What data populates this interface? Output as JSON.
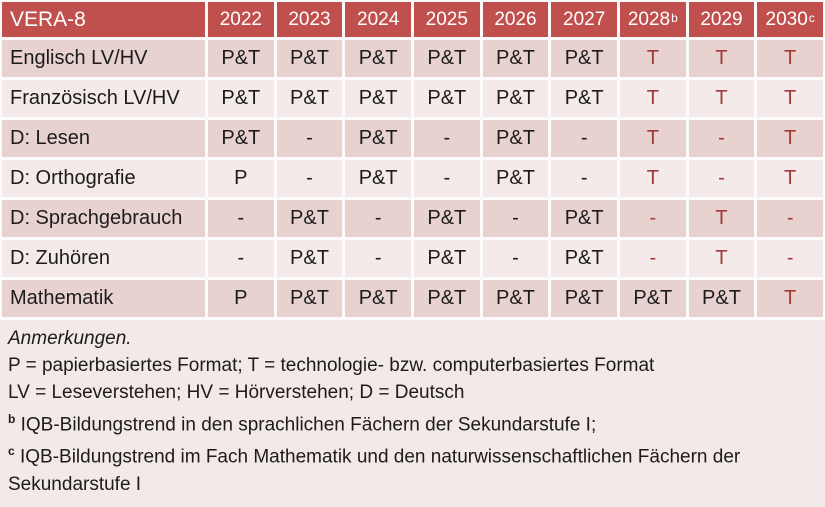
{
  "table": {
    "title": "VERA-8",
    "year_headers": [
      {
        "label": "2022",
        "sup": ""
      },
      {
        "label": "2023",
        "sup": ""
      },
      {
        "label": "2024",
        "sup": ""
      },
      {
        "label": "2025",
        "sup": ""
      },
      {
        "label": "2026",
        "sup": ""
      },
      {
        "label": "2027",
        "sup": ""
      },
      {
        "label": "2028",
        "sup": "b"
      },
      {
        "label": "2029",
        "sup": ""
      },
      {
        "label": "2030",
        "sup": "c"
      }
    ],
    "rows": [
      {
        "label": "Englisch LV/HV",
        "cells": [
          {
            "v": "P&T",
            "red": false
          },
          {
            "v": "P&T",
            "red": false
          },
          {
            "v": "P&T",
            "red": false
          },
          {
            "v": "P&T",
            "red": false
          },
          {
            "v": "P&T",
            "red": false
          },
          {
            "v": "P&T",
            "red": false
          },
          {
            "v": "T",
            "red": true
          },
          {
            "v": "T",
            "red": true
          },
          {
            "v": "T",
            "red": true
          }
        ]
      },
      {
        "label": "Französisch LV/HV",
        "cells": [
          {
            "v": "P&T",
            "red": false
          },
          {
            "v": "P&T",
            "red": false
          },
          {
            "v": "P&T",
            "red": false
          },
          {
            "v": "P&T",
            "red": false
          },
          {
            "v": "P&T",
            "red": false
          },
          {
            "v": "P&T",
            "red": false
          },
          {
            "v": "T",
            "red": true
          },
          {
            "v": "T",
            "red": true
          },
          {
            "v": "T",
            "red": true
          }
        ]
      },
      {
        "label": "D: Lesen",
        "cells": [
          {
            "v": "P&T",
            "red": false
          },
          {
            "v": "-",
            "red": false
          },
          {
            "v": "P&T",
            "red": false
          },
          {
            "v": "-",
            "red": false
          },
          {
            "v": "P&T",
            "red": false
          },
          {
            "v": "-",
            "red": false
          },
          {
            "v": "T",
            "red": true
          },
          {
            "v": "-",
            "red": true
          },
          {
            "v": "T",
            "red": true
          }
        ]
      },
      {
        "label": "D: Orthografie",
        "cells": [
          {
            "v": "P",
            "red": false
          },
          {
            "v": "-",
            "red": false
          },
          {
            "v": "P&T",
            "red": false
          },
          {
            "v": "-",
            "red": false
          },
          {
            "v": "P&T",
            "red": false
          },
          {
            "v": "-",
            "red": false
          },
          {
            "v": "T",
            "red": true
          },
          {
            "v": "-",
            "red": true
          },
          {
            "v": "T",
            "red": true
          }
        ]
      },
      {
        "label": "D: Sprachgebrauch",
        "cells": [
          {
            "v": "-",
            "red": false
          },
          {
            "v": "P&T",
            "red": false
          },
          {
            "v": "-",
            "red": false
          },
          {
            "v": "P&T",
            "red": false
          },
          {
            "v": "-",
            "red": false
          },
          {
            "v": "P&T",
            "red": false
          },
          {
            "v": "-",
            "red": true
          },
          {
            "v": "T",
            "red": true
          },
          {
            "v": "-",
            "red": true
          }
        ]
      },
      {
        "label": "D: Zuhören",
        "cells": [
          {
            "v": "-",
            "red": false
          },
          {
            "v": "P&T",
            "red": false
          },
          {
            "v": "-",
            "red": false
          },
          {
            "v": "P&T",
            "red": false
          },
          {
            "v": "-",
            "red": false
          },
          {
            "v": "P&T",
            "red": false
          },
          {
            "v": "-",
            "red": true
          },
          {
            "v": "T",
            "red": true
          },
          {
            "v": "-",
            "red": true
          }
        ]
      },
      {
        "label": "Mathematik",
        "cells": [
          {
            "v": "P",
            "red": false
          },
          {
            "v": "P&T",
            "red": false
          },
          {
            "v": "P&T",
            "red": false
          },
          {
            "v": "P&T",
            "red": false
          },
          {
            "v": "P&T",
            "red": false
          },
          {
            "v": "P&T",
            "red": false
          },
          {
            "v": "P&T",
            "red": false
          },
          {
            "v": "P&T",
            "red": false
          },
          {
            "v": "T",
            "red": true
          }
        ]
      }
    ]
  },
  "notes": {
    "heading": "Anmerkungen.",
    "line_formats": "P = papierbasiertes Format; T = technologie- bzw. computerbasiertes Format",
    "line_abbrev": "LV = Leseverstehen; HV = Hörverstehen; D = Deutsch",
    "footnotes": [
      {
        "sup": "b",
        "text": "IQB-Bildungstrend in den sprachlichen Fächern der Sekundarstufe I;"
      },
      {
        "sup": "c",
        "text": "IQB-Bildungstrend im Fach Mathematik und den naturwissenschaftlichen Fächern der Sekundarstufe I"
      }
    ]
  },
  "colors": {
    "header_bg": "#c0504d",
    "header_text": "#ffffff",
    "row_dark": "#e7d2d0",
    "row_light": "#f3eae9",
    "notes_bg": "#f2e9e8",
    "accent_red": "#a03a36",
    "text": "#1c1c1c"
  }
}
